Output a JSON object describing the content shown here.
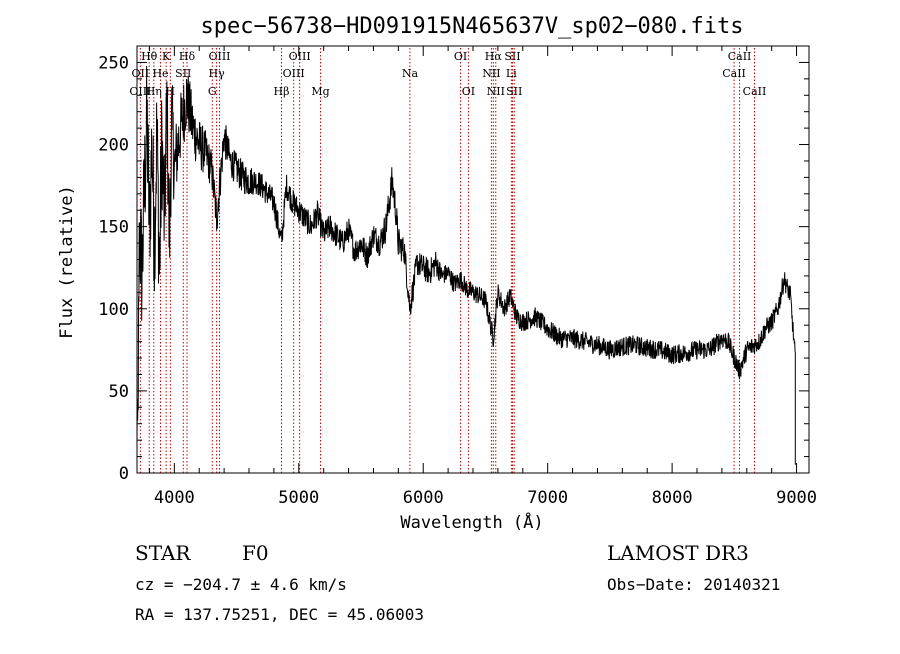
{
  "chart_data": {
    "type": "line",
    "title": "spec−56738−HD091915N465637V_sp02−080.fits",
    "xlabel": "Wavelength (Å)",
    "ylabel": "Flux (relative)",
    "xlim": [
      3700,
      9100
    ],
    "ylim": [
      0,
      260
    ],
    "xticks": [
      "4000",
      "5000",
      "6000",
      "7000",
      "8000",
      "9000"
    ],
    "yticks": [
      "0",
      "50",
      "100",
      "150",
      "200",
      "250"
    ],
    "xtick_values": [
      4000,
      5000,
      6000,
      7000,
      8000,
      9000
    ],
    "ytick_values": [
      0,
      50,
      100,
      150,
      200,
      250
    ],
    "series": [
      {
        "color": "#000000",
        "x": [
          3700,
          3720,
          3740,
          3760,
          3780,
          3800,
          3820,
          3840,
          3860,
          3880,
          3900,
          3920,
          3940,
          3960,
          3980,
          4000,
          4050,
          4100,
          4150,
          4200,
          4250,
          4300,
          4340,
          4400,
          4450,
          4500,
          4550,
          4600,
          4650,
          4700,
          4750,
          4800,
          4861,
          4900,
          4950,
          5000,
          5050,
          5100,
          5150,
          5200,
          5250,
          5300,
          5350,
          5400,
          5450,
          5500,
          5550,
          5600,
          5650,
          5700,
          5750,
          5780,
          5800,
          5850,
          5893,
          5950,
          6000,
          6050,
          6100,
          6150,
          6200,
          6250,
          6300,
          6350,
          6400,
          6450,
          6500,
          6563,
          6600,
          6650,
          6700,
          6750,
          6800,
          6900,
          7000,
          7100,
          7200,
          7300,
          7400,
          7500,
          7600,
          7700,
          7800,
          7900,
          8000,
          8100,
          8200,
          8300,
          8400,
          8450,
          8500,
          8542,
          8600,
          8662,
          8700,
          8750,
          8800,
          8850,
          8900,
          8950,
          8990
        ],
        "y": [
          5,
          150,
          120,
          175,
          215,
          150,
          200,
          140,
          210,
          120,
          205,
          150,
          225,
          140,
          215,
          185,
          210,
          230,
          210,
          200,
          195,
          185,
          155,
          205,
          190,
          185,
          180,
          178,
          178,
          175,
          170,
          165,
          140,
          175,
          165,
          160,
          155,
          150,
          158,
          145,
          150,
          145,
          140,
          148,
          135,
          140,
          132,
          145,
          140,
          150,
          178,
          160,
          140,
          135,
          100,
          128,
          125,
          122,
          128,
          120,
          122,
          115,
          118,
          112,
          110,
          108,
          105,
          82,
          110,
          100,
          108,
          95,
          92,
          95,
          88,
          82,
          82,
          80,
          78,
          75,
          77,
          78,
          76,
          75,
          72,
          73,
          75,
          75,
          82,
          80,
          70,
          62,
          75,
          78,
          80,
          88,
          92,
          100,
          118,
          108,
          70
        ],
        "noise": [
          0,
          40,
          40,
          40,
          40,
          40,
          40,
          40,
          40,
          40,
          40,
          35,
          35,
          35,
          30,
          25,
          22,
          20,
          18,
          16,
          14,
          12,
          12,
          12,
          10,
          10,
          10,
          10,
          8,
          8,
          8,
          8,
          8,
          8,
          8,
          8,
          8,
          8,
          8,
          8,
          8,
          8,
          8,
          8,
          8,
          8,
          8,
          8,
          8,
          10,
          10,
          10,
          10,
          8,
          8,
          8,
          8,
          8,
          8,
          6,
          6,
          6,
          6,
          6,
          6,
          6,
          6,
          6,
          6,
          6,
          6,
          6,
          6,
          6,
          6,
          6,
          6,
          6,
          6,
          6,
          6,
          6,
          6,
          6,
          6,
          6,
          6,
          6,
          6,
          6,
          6,
          6,
          6,
          6,
          6,
          6,
          6,
          6,
          6,
          6,
          6
        ]
      }
    ],
    "spectral_lines": [
      {
        "label": "Hθ",
        "wave": 3798,
        "row": 0
      },
      {
        "label": "K",
        "wave": 3934,
        "row": 0
      },
      {
        "label": "Hδ",
        "wave": 4102,
        "row": 0
      },
      {
        "label": "OIII",
        "wave": 4363,
        "row": 0
      },
      {
        "label": "OIII",
        "wave": 5007,
        "row": 0
      },
      {
        "label": "OI",
        "wave": 6300,
        "row": 0
      },
      {
        "label": "Hα",
        "wave": 6563,
        "row": 0
      },
      {
        "label": "SII",
        "wave": 6717,
        "row": 0
      },
      {
        "label": "CaII",
        "wave": 8542,
        "row": 0
      },
      {
        "label": "OII",
        "wave": 3727,
        "row": 1
      },
      {
        "label": "He",
        "wave": 3889,
        "row": 1
      },
      {
        "label": "SII",
        "wave": 4072,
        "row": 1
      },
      {
        "label": "Hγ",
        "wave": 4340,
        "row": 1
      },
      {
        "label": "OIII",
        "wave": 4959,
        "row": 1
      },
      {
        "label": "Na",
        "wave": 5893,
        "row": 1
      },
      {
        "label": "NII",
        "wave": 6548,
        "row": 1
      },
      {
        "label": "Li",
        "wave": 6708,
        "row": 1
      },
      {
        "label": "CaII",
        "wave": 8498,
        "row": 1
      },
      {
        "label": "OIII",
        "wave": 3727,
        "row": 2
      },
      {
        "label": "Hη",
        "wave": 3835,
        "row": 2
      },
      {
        "label": "H",
        "wave": 3968,
        "row": 2
      },
      {
        "label": "G",
        "wave": 4305,
        "row": 2
      },
      {
        "label": "Hβ",
        "wave": 4861,
        "row": 2
      },
      {
        "label": "Mg",
        "wave": 5175,
        "row": 2
      },
      {
        "label": "OI",
        "wave": 6363,
        "row": 2
      },
      {
        "label": "NII",
        "wave": 6583,
        "row": 2
      },
      {
        "label": "SII",
        "wave": 6731,
        "row": 2
      },
      {
        "label": "CaII",
        "wave": 8662,
        "row": 2
      }
    ]
  },
  "info": {
    "object_class": "STAR",
    "subclass": "F0",
    "survey": "LAMOST DR3",
    "cz": "cz = −204.7 ± 4.6 km/s",
    "obs_date": "Obs−Date: 20140321",
    "coords": "RA = 137.75251, DEC =  45.06003"
  },
  "colors": {
    "line_marker": "#cc0000",
    "spectrum": "#000000",
    "axes": "#000000"
  }
}
